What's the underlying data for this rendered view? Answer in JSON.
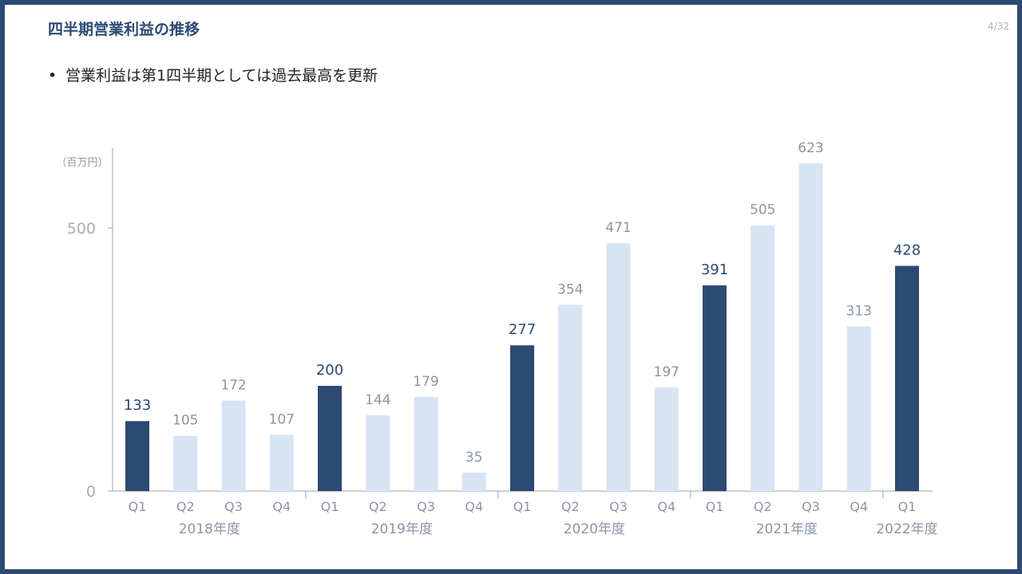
{
  "slide": {
    "title": "四半期営業利益の推移",
    "page_number": "4/32",
    "bullet": "営業利益は第1四半期としては過去最高を更新"
  },
  "colors": {
    "frame": "#2c4a73",
    "q1_bar": "#2c4a73",
    "other_bar": "#d6e4f4",
    "q1_label": "#2c4a73",
    "other_label": "#8a96a6",
    "axis": "#9aa4b0"
  },
  "chart_data": {
    "type": "bar",
    "unit_label": "（百万円）",
    "title": "",
    "xlabel": "",
    "ylabel": "",
    "ylim": [
      0,
      650
    ],
    "yticks": [
      0,
      500
    ],
    "grid": false,
    "legend": "none",
    "categories": [
      "Q1",
      "Q2",
      "Q3",
      "Q4",
      "Q1",
      "Q2",
      "Q3",
      "Q4",
      "Q1",
      "Q2",
      "Q3",
      "Q4",
      "Q1",
      "Q2",
      "Q3",
      "Q4",
      "Q1"
    ],
    "values": [
      133,
      105,
      172,
      107,
      200,
      144,
      179,
      35,
      277,
      354,
      471,
      197,
      391,
      505,
      623,
      313,
      428
    ],
    "highlight": [
      true,
      false,
      false,
      false,
      true,
      false,
      false,
      false,
      true,
      false,
      false,
      false,
      true,
      false,
      false,
      false,
      true
    ],
    "groups": [
      {
        "label": "2018年度",
        "start": 0,
        "end": 3
      },
      {
        "label": "2019年度",
        "start": 4,
        "end": 7
      },
      {
        "label": "2020年度",
        "start": 8,
        "end": 11
      },
      {
        "label": "2021年度",
        "start": 12,
        "end": 15
      },
      {
        "label": "2022年度",
        "start": 16,
        "end": 16
      }
    ]
  }
}
